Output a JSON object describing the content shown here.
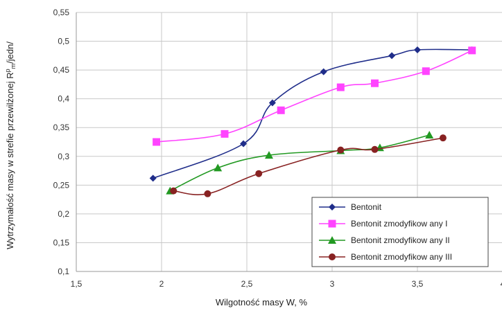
{
  "chart_data": {
    "type": "line",
    "xlabel": "Wilgotność masy W, %",
    "ylabel_main": "Wytrzymałość masy w strefie przewilżonej R",
    "ylabel_sup": "p",
    "ylabel_sub": "m",
    "ylabel_tail": "/jedn/",
    "xlim": [
      1.5,
      4
    ],
    "ylim": [
      0.1,
      0.55
    ],
    "xticks": [
      "1,5",
      "2",
      "2,5",
      "3",
      "3,5",
      "4"
    ],
    "yticks": [
      "0,1",
      "0,15",
      "0,2",
      "0,25",
      "0,3",
      "0,35",
      "0,4",
      "0,45",
      "0,5",
      "0,55"
    ],
    "grid": true,
    "legend_position": "bottom-right",
    "series": [
      {
        "name": "Bentonit",
        "color": "#1f2d8a",
        "marker": "diamond",
        "x": [
          1.95,
          2.48,
          2.65,
          2.95,
          3.35,
          3.5,
          3.82
        ],
        "y": [
          0.262,
          0.322,
          0.393,
          0.447,
          0.475,
          0.485,
          0.485
        ]
      },
      {
        "name": "Bentonit zmodyfikow any I",
        "color": "#ff44ff",
        "marker": "square",
        "x": [
          1.97,
          2.37,
          2.7,
          3.05,
          3.25,
          3.55,
          3.82
        ],
        "y": [
          0.325,
          0.339,
          0.38,
          0.42,
          0.427,
          0.448,
          0.484
        ]
      },
      {
        "name": "Bentonit zmodyfikow any II",
        "color": "#229922",
        "marker": "triangle",
        "x": [
          2.05,
          2.33,
          2.63,
          3.05,
          3.28,
          3.57
        ],
        "y": [
          0.24,
          0.28,
          0.302,
          0.31,
          0.315,
          0.337
        ]
      },
      {
        "name": "Bentonit zmodyfikow any III",
        "color": "#882222",
        "marker": "circle",
        "x": [
          2.07,
          2.27,
          2.57,
          3.05,
          3.25,
          3.65
        ],
        "y": [
          0.24,
          0.235,
          0.27,
          0.311,
          0.312,
          0.332
        ]
      }
    ]
  }
}
